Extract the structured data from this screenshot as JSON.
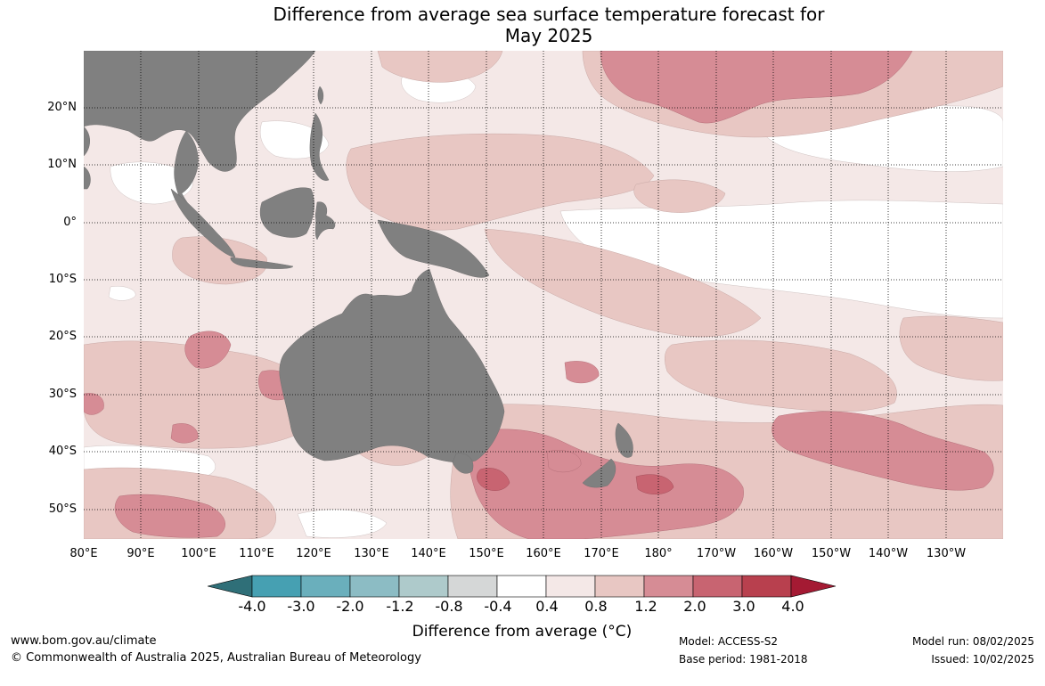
{
  "title_line1": "Difference from average sea surface temperature forecast for",
  "title_line2": "May 2025",
  "lat_labels": [
    "20°N",
    "10°N",
    "0°",
    "10°S",
    "20°S",
    "30°S",
    "40°S",
    "50°S"
  ],
  "lon_labels": [
    "80°E",
    "90°E",
    "100°E",
    "110°E",
    "120°E",
    "130°E",
    "140°E",
    "150°E",
    "160°E",
    "170°E",
    "180°",
    "170°W",
    "160°W",
    "150°W",
    "140°W",
    "130°W"
  ],
  "colorbar": {
    "label": "Difference from average (°C)",
    "ticks": [
      "-4.0",
      "-3.0",
      "-2.0",
      "-1.2",
      "-0.8",
      "-0.4",
      "0.4",
      "0.8",
      "1.2",
      "2.0",
      "3.0",
      "4.0"
    ],
    "colors": {
      "below_min": "#2f6f78",
      "bins": [
        "#46a0b2",
        "#6aafbc",
        "#8cbcc4",
        "#aecacb",
        "#d5d7d7",
        "#ffffff",
        "#f4e8e7",
        "#e8c7c3",
        "#d68c95",
        "#c86471",
        "#b8404e"
      ],
      "above_max": "#a41a33"
    }
  },
  "colors": {
    "land": "#808080",
    "ocean_base": "#f4e8e7"
  },
  "footer": {
    "website": "www.bom.gov.au/climate",
    "copyright": "© Commonwealth of Australia 2025, Australian Bureau of Meteorology",
    "model": "Model: ACCESS-S2",
    "base_period": "Base period: 1981-2018",
    "model_run": "Model run: 08/02/2025",
    "issued": "Issued: 10/02/2025"
  }
}
